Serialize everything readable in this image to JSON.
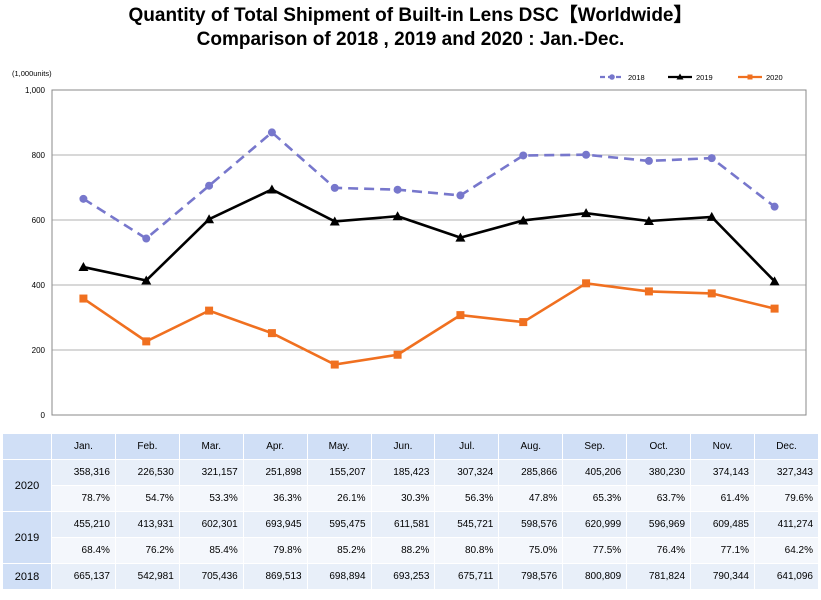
{
  "title": {
    "line1": "Quantity of Total Shipment of Built-in Lens DSC【Worldwide】",
    "line2": "Comparison of 2018 , 2019 and 2020 : Jan.-Dec."
  },
  "chart_data": {
    "type": "line",
    "title": "Quantity of Total Shipment of Built-in Lens DSC【Worldwide】 Comparison of 2018 , 2019 and 2020 : Jan.-Dec.",
    "unit_label": "(1,000units)",
    "categories": [
      "Jan.",
      "Feb.",
      "Mar.",
      "Apr.",
      "May.",
      "Jun.",
      "Jul.",
      "Aug.",
      "Sep.",
      "Oct.",
      "Nov.",
      "Dec."
    ],
    "ylim": [
      0,
      1000
    ],
    "yticks": [
      "0",
      "200",
      "400",
      "600",
      "800",
      "1,000"
    ],
    "grid": true,
    "legend_position": "top-right",
    "series": [
      {
        "name": "2018",
        "color": "#7777cc",
        "style": "dashed",
        "marker": "circle",
        "values": [
          665.137,
          542.981,
          705.436,
          869.513,
          698.894,
          693.253,
          675.711,
          798.576,
          800.809,
          781.824,
          790.344,
          641.096
        ]
      },
      {
        "name": "2019",
        "color": "#000000",
        "style": "solid",
        "marker": "triangle",
        "values": [
          455.21,
          413.931,
          602.301,
          693.945,
          595.475,
          611.581,
          545.721,
          598.576,
          620.999,
          596.969,
          609.485,
          411.274
        ]
      },
      {
        "name": "2020",
        "color": "#f07020",
        "style": "solid",
        "marker": "square",
        "values": [
          358.316,
          226.53,
          321.157,
          251.898,
          155.207,
          185.423,
          307.324,
          285.866,
          405.206,
          380.23,
          374.143,
          327.343
        ]
      }
    ]
  },
  "table": {
    "months": [
      "Jan.",
      "Feb.",
      "Mar.",
      "Apr.",
      "May.",
      "Jun.",
      "Jul.",
      "Aug.",
      "Sep.",
      "Oct.",
      "Nov.",
      "Dec."
    ],
    "rows": [
      {
        "year": "2020",
        "values": [
          "358,316",
          "226,530",
          "321,157",
          "251,898",
          "155,207",
          "185,423",
          "307,324",
          "285,866",
          "405,206",
          "380,230",
          "374,143",
          "327,343"
        ],
        "percents": [
          "78.7%",
          "54.7%",
          "53.3%",
          "36.3%",
          "26.1%",
          "30.3%",
          "56.3%",
          "47.8%",
          "65.3%",
          "63.7%",
          "61.4%",
          "79.6%"
        ]
      },
      {
        "year": "2019",
        "values": [
          "455,210",
          "413,931",
          "602,301",
          "693,945",
          "595,475",
          "611,581",
          "545,721",
          "598,576",
          "620,999",
          "596,969",
          "609,485",
          "411,274"
        ],
        "percents": [
          "68.4%",
          "76.2%",
          "85.4%",
          "79.8%",
          "85.2%",
          "88.2%",
          "80.8%",
          "75.0%",
          "77.5%",
          "76.4%",
          "77.1%",
          "64.2%"
        ]
      },
      {
        "year": "2018",
        "values": [
          "665,137",
          "542,981",
          "705,436",
          "869,513",
          "698,894",
          "693,253",
          "675,711",
          "798,576",
          "800,809",
          "781,824",
          "790,344",
          "641,096"
        ]
      }
    ]
  }
}
